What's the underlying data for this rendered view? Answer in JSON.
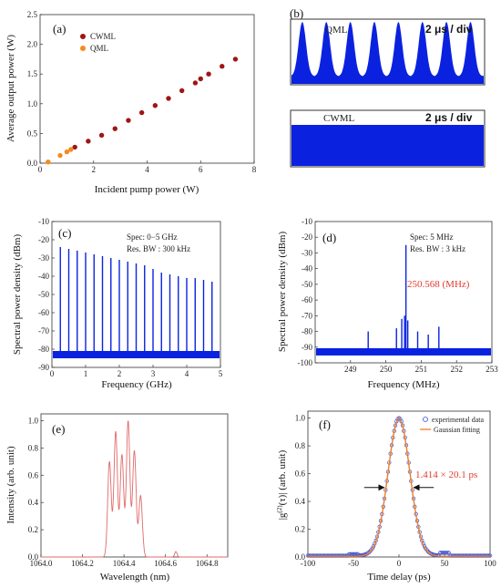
{
  "chart_data": [
    {
      "id": "a",
      "type": "scatter",
      "panel_label": "(a)",
      "xlabel": "Incident pump power (W)",
      "ylabel": "Average output power (W)",
      "xlim": [
        0,
        8
      ],
      "ylim": [
        0,
        2.5
      ],
      "xticks": [
        "0",
        "2",
        "4",
        "6",
        "8"
      ],
      "yticks": [
        "0.0",
        "0.5",
        "1.0",
        "1.5",
        "2.0",
        "2.5"
      ],
      "legend_position": "upper-left",
      "series": [
        {
          "name": "CWML",
          "color": "#a01515",
          "x": [
            1.3,
            1.8,
            2.3,
            2.8,
            3.3,
            3.8,
            4.3,
            4.8,
            5.3,
            5.8,
            6.0,
            6.3,
            6.8,
            7.3
          ],
          "y": [
            0.27,
            0.37,
            0.47,
            0.58,
            0.72,
            0.85,
            0.97,
            1.09,
            1.22,
            1.35,
            1.42,
            1.5,
            1.63,
            1.75
          ]
        },
        {
          "name": "QML",
          "color": "#f28c1e",
          "x": [
            0.3,
            0.75,
            1.0,
            1.15
          ],
          "y": [
            0.02,
            0.13,
            0.19,
            0.23
          ]
        }
      ]
    },
    {
      "id": "b",
      "type": "line",
      "panel_label": "(b)",
      "traces": [
        {
          "label": "QML",
          "scale": "2 μs / div",
          "pulses": 8
        },
        {
          "label": "CWML",
          "scale": "2 μs / div"
        }
      ],
      "color": "#0a22e0"
    },
    {
      "id": "c",
      "type": "line",
      "panel_label": "(c)",
      "xlabel": "Frequency (GHz)",
      "ylabel": "Spectral power density (dBm)",
      "xlim": [
        0,
        5
      ],
      "ylim": [
        -90,
        -10
      ],
      "xticks": [
        "0",
        "1",
        "2",
        "3",
        "4",
        "5"
      ],
      "yticks": [
        "-10",
        "-20",
        "-30",
        "-40",
        "-50",
        "-60",
        "-70",
        "-80",
        "-90"
      ],
      "annotations": [
        "Spec:  0−5 GHz",
        "Res. BW : 300 kHz"
      ],
      "noise_floor": -83,
      "peaks_x": [
        0.25,
        0.5,
        0.75,
        1.0,
        1.25,
        1.5,
        1.75,
        2.0,
        2.25,
        2.5,
        2.75,
        3.0,
        3.25,
        3.5,
        3.75,
        4.0,
        4.25,
        4.5,
        4.75
      ],
      "peaks_y": [
        -24,
        -25,
        -26,
        -27,
        -28,
        -29,
        -30,
        -31,
        -32,
        -33,
        -34,
        -36,
        -38,
        -39,
        -40,
        -41,
        -41,
        -42,
        -43
      ],
      "color": "#0a22e0"
    },
    {
      "id": "d",
      "type": "line",
      "panel_label": "(d)",
      "xlabel": "Frequency (MHz)",
      "ylabel": "Spectral power density (dBm)",
      "xlim": [
        248,
        253
      ],
      "ylim": [
        -100,
        -10
      ],
      "xticks": [
        "249",
        "250",
        "251",
        "252",
        "253"
      ],
      "yticks": [
        "-10",
        "-20",
        "-30",
        "-40",
        "-50",
        "-60",
        "-70",
        "-80",
        "-90",
        "-100"
      ],
      "annotations": [
        "Spec:  5 MHz",
        "Res. BW : 3 kHz"
      ],
      "peak_label": "250.568 (MHz)",
      "noise_floor": -93,
      "peaks_x": [
        249.5,
        250.3,
        250.45,
        250.53,
        250.568,
        250.62,
        250.9,
        251.2,
        251.5
      ],
      "peaks_y": [
        -80,
        -78,
        -72,
        -70,
        -25,
        -73,
        -80,
        -82,
        -77
      ],
      "color": "#0a22e0"
    },
    {
      "id": "e",
      "type": "line",
      "panel_label": "(e)",
      "xlabel": "Wavelength (nm)",
      "ylabel": "Intensity (arb. unit)",
      "xlim": [
        1064.0,
        1064.9
      ],
      "ylim": [
        0,
        1.05
      ],
      "xticks": [
        "1064.0",
        "1064.2",
        "1064.4",
        "1064.6",
        "1064.8"
      ],
      "yticks": [
        "0.0",
        "0.2",
        "0.4",
        "0.6",
        "0.8",
        "1.0"
      ],
      "peaks_x": [
        1064.33,
        1064.36,
        1064.39,
        1064.42,
        1064.45,
        1064.48,
        1064.65
      ],
      "peaks_y": [
        0.7,
        0.92,
        0.75,
        1.0,
        0.78,
        0.45,
        0.04
      ],
      "color": "#e06a6a"
    },
    {
      "id": "f",
      "type": "line",
      "panel_label": "(f)",
      "xlabel": "Time delay (ps)",
      "ylabel": "|g(2)(τ)| (arb. unit)",
      "xlim": [
        -100,
        100
      ],
      "ylim": [
        0,
        1.05
      ],
      "xticks": [
        "-100",
        "-50",
        "0",
        "50",
        "100"
      ],
      "yticks": [
        "0.0",
        "0.2",
        "0.4",
        "0.6",
        "0.8",
        "1.0"
      ],
      "annotation": "1.414 × 20.1 ps",
      "fwhm_ps": 28.4,
      "series": [
        {
          "name": "experimental data",
          "color": "#3a4fcf",
          "marker": "circle"
        },
        {
          "name": "Gaussian fitting",
          "color": "#f07c1f",
          "marker": "line"
        }
      ]
    }
  ]
}
